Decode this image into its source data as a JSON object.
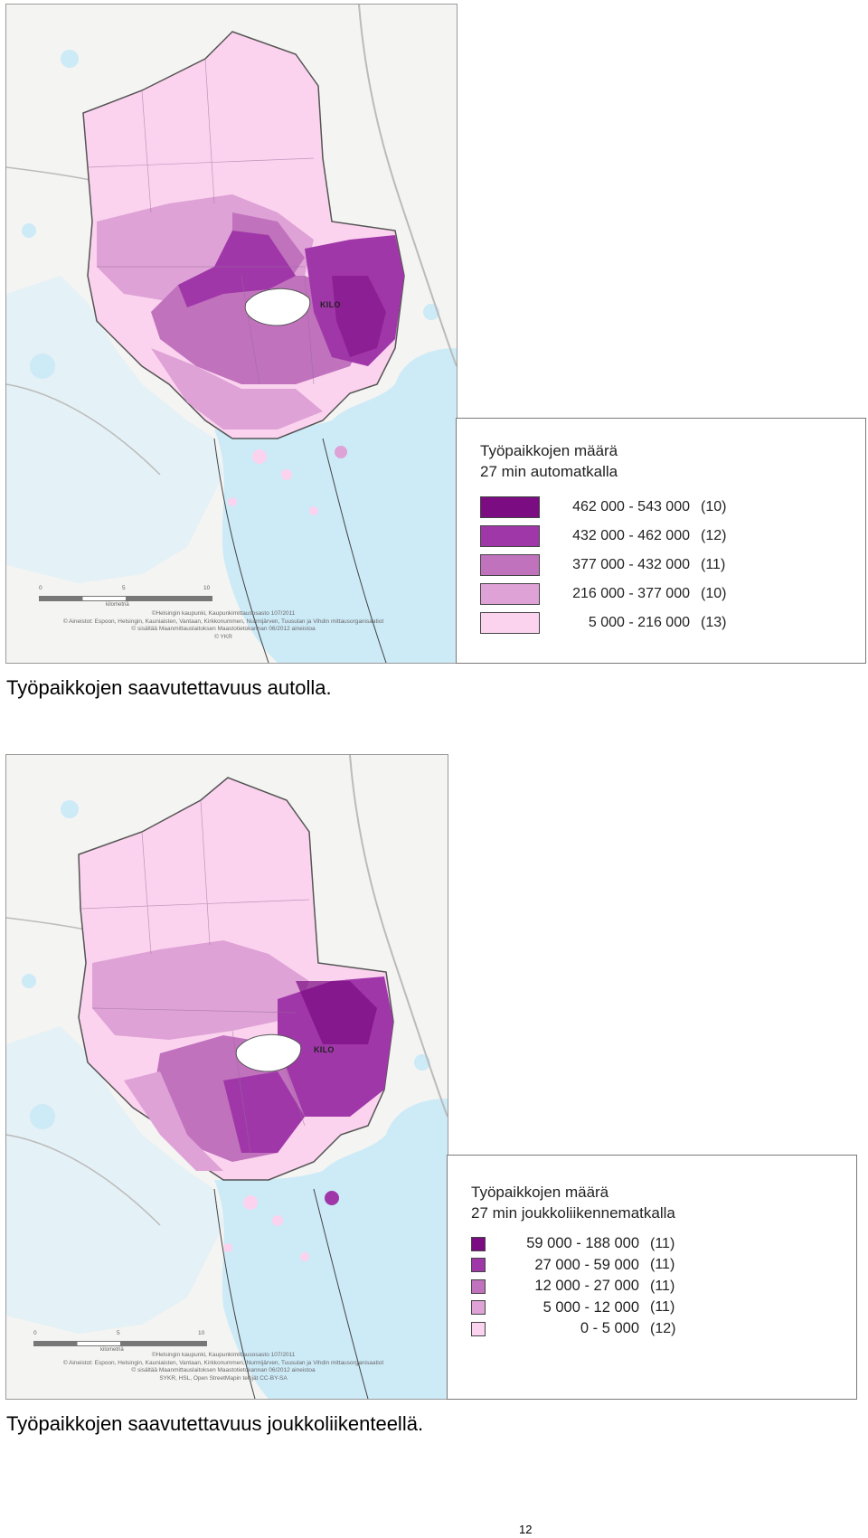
{
  "maps": [
    {
      "place_label": "KILO",
      "scale_labels": [
        "0",
        "5",
        "10"
      ],
      "scale_unit": "kilometriä",
      "attribution": [
        "©Helsingin kaupunki, Kaupunkimittausosasto 107/2011",
        "© Aineistot: Espoon, Helsingin, Kauniaisten, Vantaan, Kirkkonummen, Nurmijärven, Tuusulan ja Vihdin mittausorganisaatiot",
        "© sisältää Maanmittauslaitoksen Maastotietokannan 06/2012 aineistoa",
        "© YKR"
      ],
      "legend": {
        "title_line1": "Työpaikkojen määrä",
        "title_line2": "27 min automatkalla",
        "classes": [
          {
            "range": "462 000 - 543 000",
            "count": "(10)",
            "color": "#7b0c82"
          },
          {
            "range": "432 000 - 462 000",
            "count": "(12)",
            "color": "#a037a9"
          },
          {
            "range": "377 000 - 432 000",
            "count": "(11)",
            "color": "#c072bd"
          },
          {
            "range": "216 000 - 377 000",
            "count": "(10)",
            "color": "#dea2d6"
          },
          {
            "range": "5 000 - 216 000",
            "count": "(13)",
            "color": "#fbd3ee"
          }
        ]
      },
      "caption": "Työpaikkojen saavutettavuus autolla."
    },
    {
      "place_label": "KILO",
      "scale_labels": [
        "0",
        "5",
        "10"
      ],
      "scale_unit": "kilometriä",
      "attribution": [
        "©Helsingin kaupunki, Kaupunkimittausosasto 107/2011",
        "© Aineistot: Espoon, Helsingin, Kauniaisten, Vantaan, Kirkkonummen, Nurmijärven, Tuusulan ja Vihdin mittausorganisaatiot",
        "© sisältää Maanmittauslaitoksen Maastotietokannan 06/2012 aineistoa",
        "SYKR, HSL, Open StreetMapin tekijät CC-BY-SA"
      ],
      "legend": {
        "title_line1": "Työpaikkojen määrä",
        "title_line2": "27 min joukkoliikennematkalla",
        "classes": [
          {
            "range": "59 000 - 188 000",
            "count": "(11)",
            "color": "#7b0c82"
          },
          {
            "range": "27 000 - 59 000",
            "count": "(11)",
            "color": "#a037a9"
          },
          {
            "range": "12 000 - 27 000",
            "count": "(11)",
            "color": "#c072bd"
          },
          {
            "range": "5 000 - 12 000",
            "count": "(11)",
            "color": "#dea2d6"
          },
          {
            "range": "0 - 5 000",
            "count": "(12)",
            "color": "#fbd3ee"
          }
        ]
      },
      "caption": "Työpaikkojen saavutettavuus joukkoliikenteellä."
    }
  ],
  "page_number": "12",
  "colors": {
    "sea": "#cdeaf7",
    "land": "#f3f3f1",
    "boundary": "#555555"
  }
}
